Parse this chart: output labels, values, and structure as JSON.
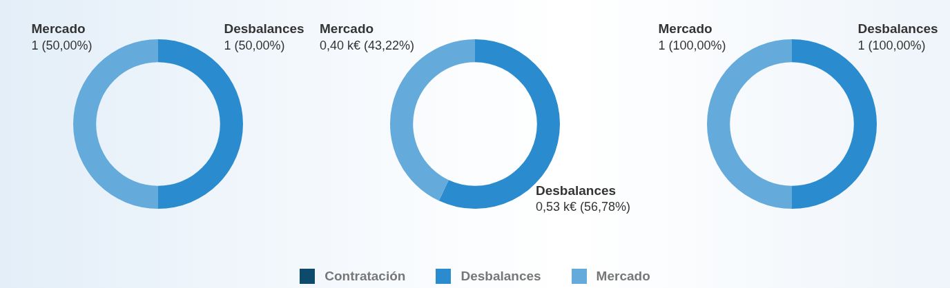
{
  "chart_data": [
    {
      "type": "donut",
      "categories": [
        "Contratación",
        "Desbalances",
        "Mercado"
      ],
      "values": [
        0,
        1,
        1
      ],
      "colors": [
        "#0d4a6b",
        "#2a8ccf",
        "#64aada"
      ],
      "value_labels": [
        null,
        "1 (50,00%)",
        "1 (50,00%)"
      ],
      "legend": "bottom"
    },
    {
      "type": "donut",
      "categories": [
        "Desbalances",
        "Mercado"
      ],
      "values": [
        0.53,
        0.4
      ],
      "colors": [
        "#2a8ccf",
        "#64aada"
      ],
      "value_labels": [
        "0,53 k€ (56,78%)",
        "0,40 k€ (43,22%)"
      ]
    },
    {
      "type": "donut",
      "categories": [
        "Desbalances",
        "Mercado"
      ],
      "values": [
        1,
        1
      ],
      "colors": [
        "#2a8ccf",
        "#64aada"
      ],
      "value_labels": [
        "1 (100,00%)",
        "1 (100,00%)"
      ]
    }
  ]
}
